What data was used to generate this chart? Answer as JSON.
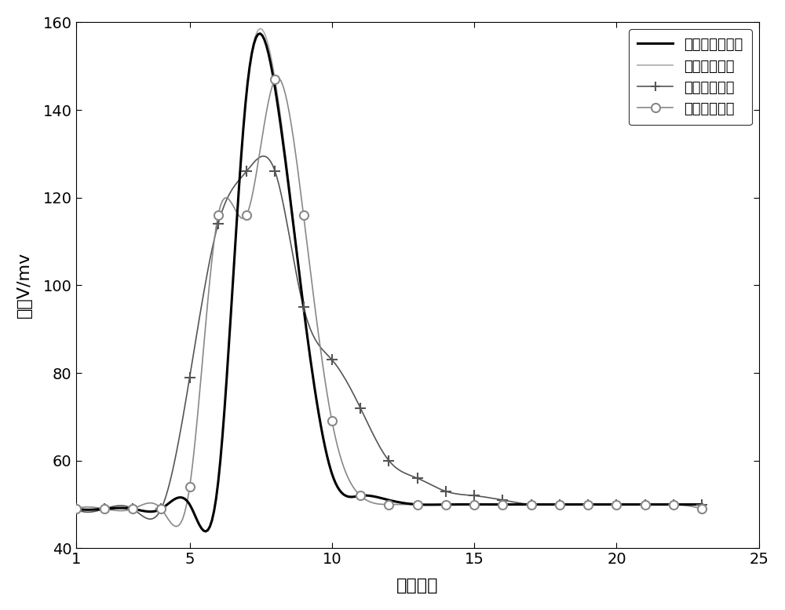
{
  "title": "",
  "xlabel": "采样数据",
  "ylabel": "电压V/mv",
  "xlim": [
    1,
    25
  ],
  "ylim": [
    40,
    160
  ],
  "xticks": [
    1,
    5,
    10,
    15,
    20,
    25
  ],
  "yticks": [
    40,
    60,
    80,
    100,
    120,
    140,
    160
  ],
  "poly_x": [
    1,
    2,
    3,
    4,
    5,
    6,
    7,
    8,
    9,
    10,
    11,
    12,
    13,
    14,
    15,
    16,
    17,
    18,
    19,
    20,
    21,
    22,
    23
  ],
  "poly_y": [
    49,
    49,
    49,
    49,
    50,
    55,
    144,
    145,
    95,
    57,
    52,
    51,
    50,
    50,
    50,
    50,
    50,
    50,
    50,
    50,
    50,
    50,
    50
  ],
  "real_x": [
    1,
    2,
    3,
    4,
    5,
    6,
    7,
    8,
    9,
    10,
    11,
    12,
    13,
    14,
    15,
    16,
    17,
    18,
    19,
    20,
    21,
    22,
    23
  ],
  "real_y": [
    49,
    49,
    49,
    49,
    50,
    55,
    144,
    147,
    95,
    57,
    52,
    51,
    50,
    50,
    50,
    50,
    50,
    50,
    50,
    50,
    50,
    50,
    50
  ],
  "global_x": [
    1,
    2,
    3,
    4,
    5,
    6,
    7,
    8,
    9,
    10,
    11,
    12,
    13,
    14,
    15,
    16,
    17,
    18,
    19,
    20,
    21,
    22,
    23
  ],
  "global_y": [
    49,
    49,
    49,
    49,
    79,
    114,
    126,
    126,
    95,
    83,
    72,
    60,
    56,
    53,
    52,
    51,
    50,
    50,
    50,
    50,
    50,
    50,
    50
  ],
  "empirical_x": [
    1,
    2,
    3,
    4,
    5,
    6,
    7,
    8,
    9,
    10,
    11,
    12,
    13,
    14,
    15,
    16,
    17,
    18,
    19,
    20,
    21,
    22,
    23
  ],
  "empirical_y": [
    49,
    49,
    49,
    49,
    54,
    116,
    116,
    147,
    116,
    69,
    52,
    50,
    50,
    50,
    50,
    50,
    50,
    50,
    50,
    50,
    50,
    50,
    49
  ],
  "poly_color": "#000000",
  "real_color": "#aaaaaa",
  "global_color": "#555555",
  "empirical_color": "#888888",
  "poly_label": "多项式拟合曲线",
  "real_label": "真实电压曲线",
  "global_label": "整体拟合曲线",
  "empirical_label": "经验模型曲线",
  "bg_color": "#ffffff",
  "tick_fontsize": 14,
  "label_fontsize": 16,
  "legend_fontsize": 13
}
